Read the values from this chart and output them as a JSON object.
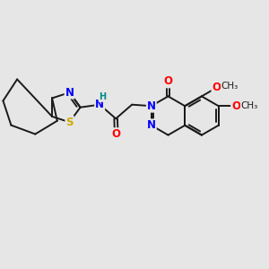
{
  "bg_color": "#e6e6e6",
  "bond_color": "#1a1a1a",
  "bond_width": 1.4,
  "atom_colors": {
    "N": "#0000ff",
    "O": "#ff0000",
    "S": "#ccaa00",
    "H": "#008888",
    "C": "#1a1a1a"
  },
  "font_size": 8.5
}
